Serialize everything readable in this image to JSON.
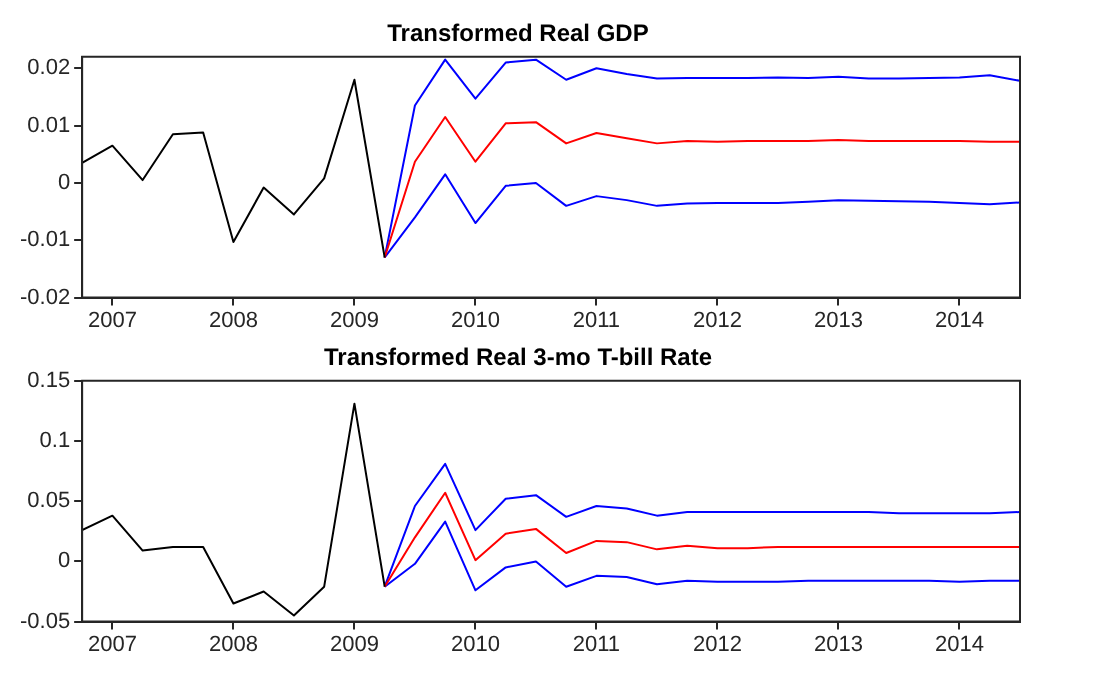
{
  "chart_data": [
    {
      "type": "line",
      "title": "Transformed Real GDP",
      "xlim": [
        2006.75,
        2014.5
      ],
      "xticks": [
        2007,
        2008,
        2009,
        2010,
        2011,
        2012,
        2013,
        2014
      ],
      "ylim": [
        -0.02,
        0.022
      ],
      "yticks": [
        -0.02,
        -0.01,
        0,
        0.01,
        0.02
      ],
      "grid": false,
      "legend": false,
      "marker": "none",
      "line_style": "solid",
      "series": [
        {
          "color": "#000000",
          "x": [
            2006.75,
            2007,
            2007.25,
            2007.5,
            2007.75,
            2008,
            2008.25,
            2008.5,
            2008.75,
            2009,
            2009.25
          ],
          "values": [
            0.0035,
            0.0065,
            0.0005,
            0.0085,
            0.0088,
            -0.0103,
            -0.0008,
            -0.0055,
            0.0008,
            0.018,
            -0.013
          ]
        },
        {
          "color": "#ff0000",
          "x": [
            2009.25,
            2009.5,
            2009.75,
            2010,
            2010.25,
            2010.5,
            2010.75,
            2011,
            2011.25,
            2011.5,
            2011.75,
            2012,
            2012.25,
            2012.5,
            2012.75,
            2013,
            2013.25,
            2013.5,
            2013.75,
            2014,
            2014.25,
            2014.5
          ],
          "values": [
            -0.013,
            0.0037,
            0.0115,
            0.0037,
            0.0104,
            0.0106,
            0.0069,
            0.0087,
            0.0078,
            0.0069,
            0.0073,
            0.0072,
            0.0073,
            0.0073,
            0.0073,
            0.0075,
            0.0073,
            0.0073,
            0.0073,
            0.0073,
            0.0072,
            0.0072
          ]
        },
        {
          "color": "#0000ff",
          "x": [
            2009.25,
            2009.5,
            2009.75,
            2010,
            2010.25,
            2010.5,
            2010.75,
            2011,
            2011.25,
            2011.5,
            2011.75,
            2012,
            2012.25,
            2012.5,
            2012.75,
            2013,
            2013.25,
            2013.5,
            2013.75,
            2014,
            2014.25,
            2014.5
          ],
          "values": [
            -0.013,
            0.0135,
            0.0215,
            0.0147,
            0.021,
            0.0215,
            0.018,
            0.02,
            0.019,
            0.0182,
            0.0183,
            0.0183,
            0.0183,
            0.0184,
            0.0183,
            0.0185,
            0.0182,
            0.0182,
            0.0183,
            0.0184,
            0.0188,
            0.0178
          ]
        },
        {
          "color": "#0000ff",
          "x": [
            2009.25,
            2009.5,
            2009.75,
            2010,
            2010.25,
            2010.5,
            2010.75,
            2011,
            2011.25,
            2011.5,
            2011.75,
            2012,
            2012.25,
            2012.5,
            2012.75,
            2013,
            2013.25,
            2013.5,
            2013.75,
            2014,
            2014.25,
            2014.5
          ],
          "values": [
            -0.013,
            -0.006,
            0.0015,
            -0.007,
            -0.0005,
            0,
            -0.004,
            -0.0023,
            -0.003,
            -0.004,
            -0.0036,
            -0.0035,
            -0.0035,
            -0.0035,
            -0.0033,
            -0.003,
            -0.0031,
            -0.0032,
            -0.0033,
            -0.0035,
            -0.0037,
            -0.0034
          ]
        }
      ]
    },
    {
      "type": "line",
      "title": "Transformed Real 3-mo T-bill Rate",
      "xlim": [
        2006.75,
        2014.5
      ],
      "xticks": [
        2007,
        2008,
        2009,
        2010,
        2011,
        2012,
        2013,
        2014
      ],
      "ylim": [
        -0.05,
        0.15
      ],
      "yticks": [
        -0.05,
        0,
        0.05,
        0.1,
        0.15
      ],
      "grid": false,
      "legend": false,
      "marker": "none",
      "line_style": "solid",
      "series": [
        {
          "color": "#000000",
          "x": [
            2006.75,
            2007,
            2007.25,
            2007.5,
            2007.75,
            2008,
            2008.25,
            2008.5,
            2008.75,
            2009,
            2009.25
          ],
          "values": [
            0.026,
            0.038,
            0.009,
            0.012,
            0.012,
            -0.035,
            -0.025,
            -0.045,
            -0.021,
            0.131,
            -0.021
          ]
        },
        {
          "color": "#ff0000",
          "x": [
            2009.25,
            2009.5,
            2009.75,
            2010,
            2010.25,
            2010.5,
            2010.75,
            2011,
            2011.25,
            2011.5,
            2011.75,
            2012,
            2012.25,
            2012.5,
            2012.75,
            2013,
            2013.25,
            2013.5,
            2013.75,
            2014,
            2014.25,
            2014.5
          ],
          "values": [
            -0.021,
            0.02,
            0.057,
            0.001,
            0.023,
            0.027,
            0.007,
            0.017,
            0.016,
            0.01,
            0.013,
            0.011,
            0.011,
            0.012,
            0.012,
            0.012,
            0.012,
            0.012,
            0.012,
            0.012,
            0.012,
            0.012
          ]
        },
        {
          "color": "#0000ff",
          "x": [
            2009.25,
            2009.5,
            2009.75,
            2010,
            2010.25,
            2010.5,
            2010.75,
            2011,
            2011.25,
            2011.5,
            2011.75,
            2012,
            2012.25,
            2012.5,
            2012.75,
            2013,
            2013.25,
            2013.5,
            2013.75,
            2014,
            2014.25,
            2014.5
          ],
          "values": [
            -0.021,
            0.046,
            0.081,
            0.026,
            0.052,
            0.055,
            0.037,
            0.046,
            0.044,
            0.038,
            0.041,
            0.041,
            0.041,
            0.041,
            0.041,
            0.041,
            0.041,
            0.04,
            0.04,
            0.04,
            0.04,
            0.041
          ]
        },
        {
          "color": "#0000ff",
          "x": [
            2009.25,
            2009.5,
            2009.75,
            2010,
            2010.25,
            2010.5,
            2010.75,
            2011,
            2011.25,
            2011.5,
            2011.75,
            2012,
            2012.25,
            2012.5,
            2012.75,
            2013,
            2013.25,
            2013.5,
            2013.75,
            2014,
            2014.25,
            2014.5
          ],
          "values": [
            -0.021,
            -0.002,
            0.033,
            -0.024,
            -0.005,
            0,
            -0.021,
            -0.012,
            -0.013,
            -0.019,
            -0.016,
            -0.017,
            -0.017,
            -0.017,
            -0.016,
            -0.016,
            -0.016,
            -0.016,
            -0.016,
            -0.017,
            -0.016,
            -0.016
          ]
        }
      ]
    }
  ]
}
